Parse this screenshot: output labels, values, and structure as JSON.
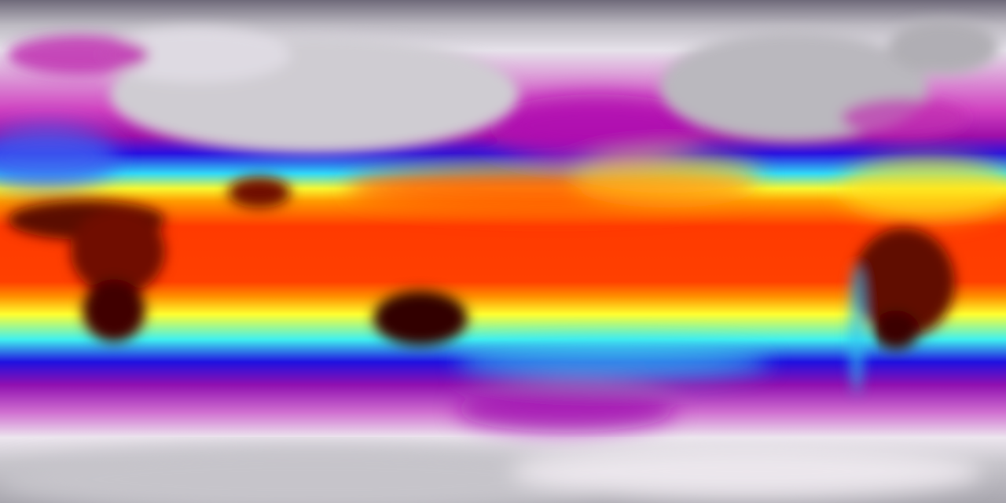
{
  "map": {
    "type": "global-temperature-field",
    "projection": "equirectangular",
    "colormap": [
      "#6f6a7a",
      "#e8e4ea",
      "#c020b0",
      "#2010e0",
      "#30e0f0",
      "#ffff20",
      "#ff8000",
      "#ff2000",
      "#c01000",
      "#200000"
    ],
    "latitude_bands": [
      {
        "color": "#6f6a7a",
        "stop": 0
      },
      {
        "color": "#bdbac2",
        "stop": 0.05
      },
      {
        "color": "#e6e2ea",
        "stop": 0.1
      },
      {
        "color": "#d040c0",
        "stop": 0.22
      },
      {
        "color": "#a010a8",
        "stop": 0.27
      },
      {
        "color": "#2a10e0",
        "stop": 0.305
      },
      {
        "color": "#30d8f8",
        "stop": 0.345
      },
      {
        "color": "#f8f830",
        "stop": 0.375
      },
      {
        "color": "#ff9a00",
        "stop": 0.4
      },
      {
        "color": "#ff3a00",
        "stop": 0.45
      },
      {
        "color": "#ff4000",
        "stop": 0.56
      },
      {
        "color": "#ff9000",
        "stop": 0.59
      },
      {
        "color": "#ffff30",
        "stop": 0.625
      },
      {
        "color": "#40f0f0",
        "stop": 0.675
      },
      {
        "color": "#2010e0",
        "stop": 0.72
      },
      {
        "color": "#9010b0",
        "stop": 0.765
      },
      {
        "color": "#d070d0",
        "stop": 0.82
      },
      {
        "color": "#ece6ee",
        "stop": 0.87
      },
      {
        "color": "#c8c6cc",
        "stop": 0.92
      },
      {
        "color": "#a8a6ae",
        "stop": 1
      }
    ],
    "regions": {
      "eurasia_color": "#c9c6cc",
      "north_america_color": "#b8b6bc",
      "hot_land_color": "#3a0500",
      "antarctica_color": "#c4c2c8"
    }
  }
}
